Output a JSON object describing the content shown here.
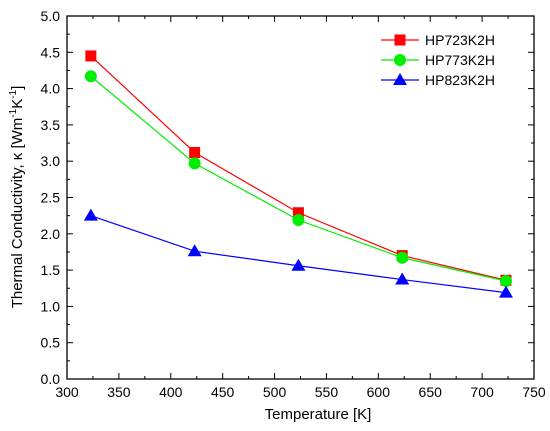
{
  "chart_data": {
    "type": "line",
    "title": "",
    "xlabel": "Temperature [K]",
    "ylabel_main": "Thermal Conductivity, κ [Wm",
    "ylabel_sup1": "-1",
    "ylabel_mid": "K",
    "ylabel_sup2": "-1",
    "ylabel_end": "]",
    "xlim": [
      300,
      750
    ],
    "ylim": [
      0.0,
      5.0
    ],
    "x_ticks": [
      "300",
      "350",
      "400",
      "450",
      "500",
      "550",
      "600",
      "650",
      "700",
      "750"
    ],
    "y_ticks": [
      "0.0",
      "0.5",
      "1.0",
      "1.5",
      "2.0",
      "2.5",
      "3.0",
      "3.5",
      "4.0",
      "4.5",
      "5.0"
    ],
    "grid": false,
    "legend_position": "top-right",
    "x": [
      323,
      423,
      523,
      623,
      723
    ],
    "series": [
      {
        "name": "HP723K2H",
        "color": "#ff0000",
        "marker": "square",
        "values": [
          4.45,
          3.12,
          2.29,
          1.7,
          1.36
        ]
      },
      {
        "name": "HP773K2H",
        "color": "#00ee00",
        "marker": "circle",
        "values": [
          4.17,
          2.97,
          2.19,
          1.67,
          1.35
        ]
      },
      {
        "name": "HP823K2H",
        "color": "#0000ff",
        "marker": "triangle",
        "values": [
          2.25,
          1.76,
          1.56,
          1.37,
          1.19
        ]
      }
    ]
  }
}
